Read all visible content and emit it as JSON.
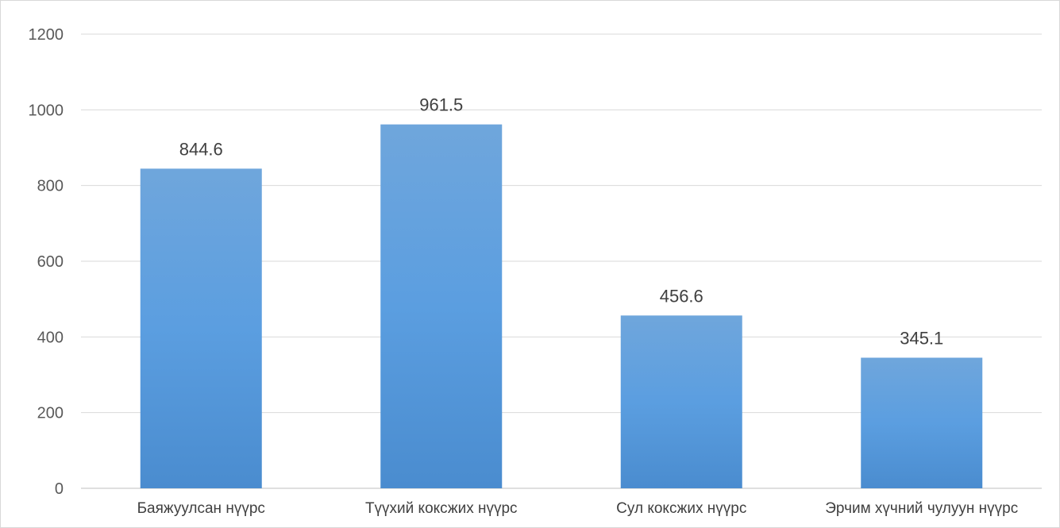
{
  "chart_data": {
    "type": "bar",
    "title": "",
    "xlabel": "",
    "ylabel": "",
    "categories": [
      "Баяжуулсан нүүрс",
      "Түүхий коксжих нүүрс",
      "Сул коксжих нүүрс",
      "Эрчим хүчний чулуун нүүрс"
    ],
    "values": [
      844.6,
      961.5,
      456.6,
      345.1
    ],
    "data_labels": [
      "844.6",
      "961.5",
      "456.6",
      "345.1"
    ],
    "ylim": [
      0,
      1200
    ],
    "yticks": [
      0,
      200,
      400,
      600,
      800,
      1000,
      1200
    ],
    "grid": true,
    "legend": "none",
    "colors": {
      "bar_top": "#6fa6dc",
      "bar_mid": "#5b9ee0",
      "bar_bottom": "#4a8ccf",
      "grid": "#d9d9d9",
      "axis": "#bfbfbf"
    }
  }
}
